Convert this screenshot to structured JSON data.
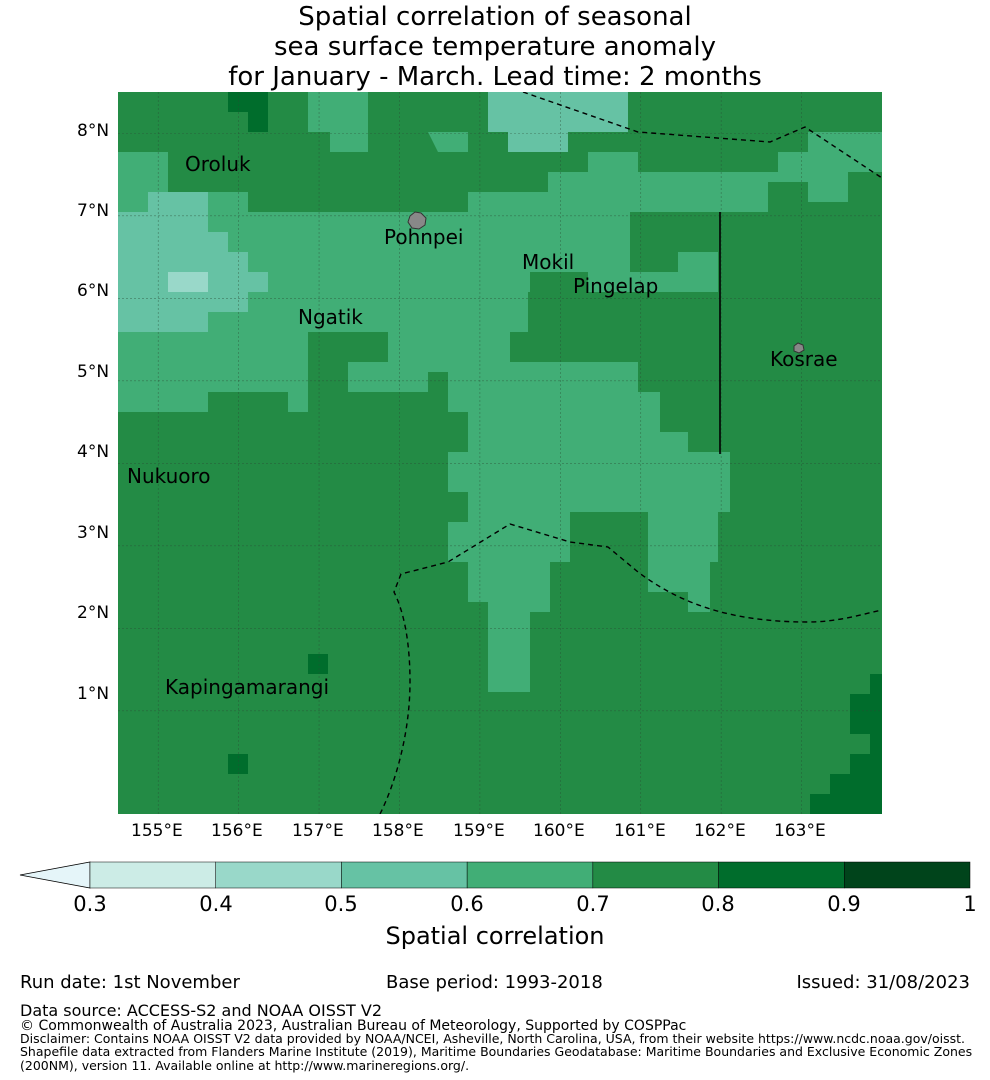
{
  "title": {
    "line1": "Spatial correlation of seasonal",
    "line2": "sea surface temperature anomaly",
    "line3": "for January - March. Lead time: 2 months"
  },
  "axes": {
    "x_ticks": [
      "155°E",
      "156°E",
      "157°E",
      "158°E",
      "159°E",
      "160°E",
      "161°E",
      "162°E",
      "163°E"
    ],
    "y_ticks": [
      "8°N",
      "7°N",
      "6°N",
      "5°N",
      "4°N",
      "3°N",
      "2°N",
      "1°N"
    ],
    "lon_range": [
      154.5,
      164.0
    ],
    "lat_range": [
      -0.25,
      8.5
    ]
  },
  "places": [
    {
      "name": "Oroluk"
    },
    {
      "name": "Pohnpei"
    },
    {
      "name": "Mokil"
    },
    {
      "name": "Pingelap"
    },
    {
      "name": "Ngatik"
    },
    {
      "name": "Kosrae"
    },
    {
      "name": "Nukuoro"
    },
    {
      "name": "Kapingamarangi"
    }
  ],
  "colorbar": {
    "ticks": [
      "0.3",
      "0.4",
      "0.5",
      "0.6",
      "0.7",
      "0.8",
      "0.9",
      "1"
    ],
    "label": "Spatial correlation",
    "colors": [
      "#e5f5f9",
      "#ccece6",
      "#99d8c9",
      "#66c2a4",
      "#41ae76",
      "#238b45",
      "#006d2c",
      "#00441b"
    ]
  },
  "meta": {
    "run_date": "Run date: 1st November",
    "base_period": "Base period: 1993-2018",
    "issued": "Issued: 31/08/2023"
  },
  "footer": {
    "source": "Data source: ACCESS-S2 and NOAA OISST V2",
    "copyright": "© Commonwealth of Australia 2023, Australian Bureau of Meteorology, Supported by COSPPac",
    "disclaimer1": "Disclaimer: Contains NOAA OISST V2 data provided by NOAA/NCEI, Asheville, North Carolina, USA, from their website https://www.ncdc.noaa.gov/oisst.",
    "disclaimer2": "Shapefile data extracted from Flanders Marine Institute (2019), Maritime Boundaries Geodatabase: Maritime Boundaries and Exclusive Economic Zones",
    "disclaimer3": "(200NM), version 11. Available online at http://www.marineregions.org/."
  }
}
